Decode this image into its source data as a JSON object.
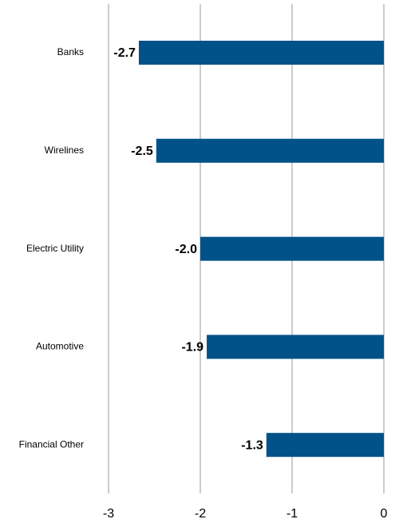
{
  "chart_data": {
    "type": "bar",
    "orientation": "horizontal",
    "categories": [
      "Banks",
      "Wirelines",
      "Electric Utility",
      "Automotive",
      "Financial Other"
    ],
    "values": [
      -2.67,
      -2.48,
      -2.0,
      -1.93,
      -1.28
    ],
    "value_labels": [
      "-2.7",
      "-2.5",
      "-2.0",
      "-1.9",
      "-1.3"
    ],
    "color": "#005288",
    "xlim": [
      -3,
      0
    ],
    "xticks": [
      -3,
      -2,
      -1,
      0
    ],
    "grid": true
  }
}
